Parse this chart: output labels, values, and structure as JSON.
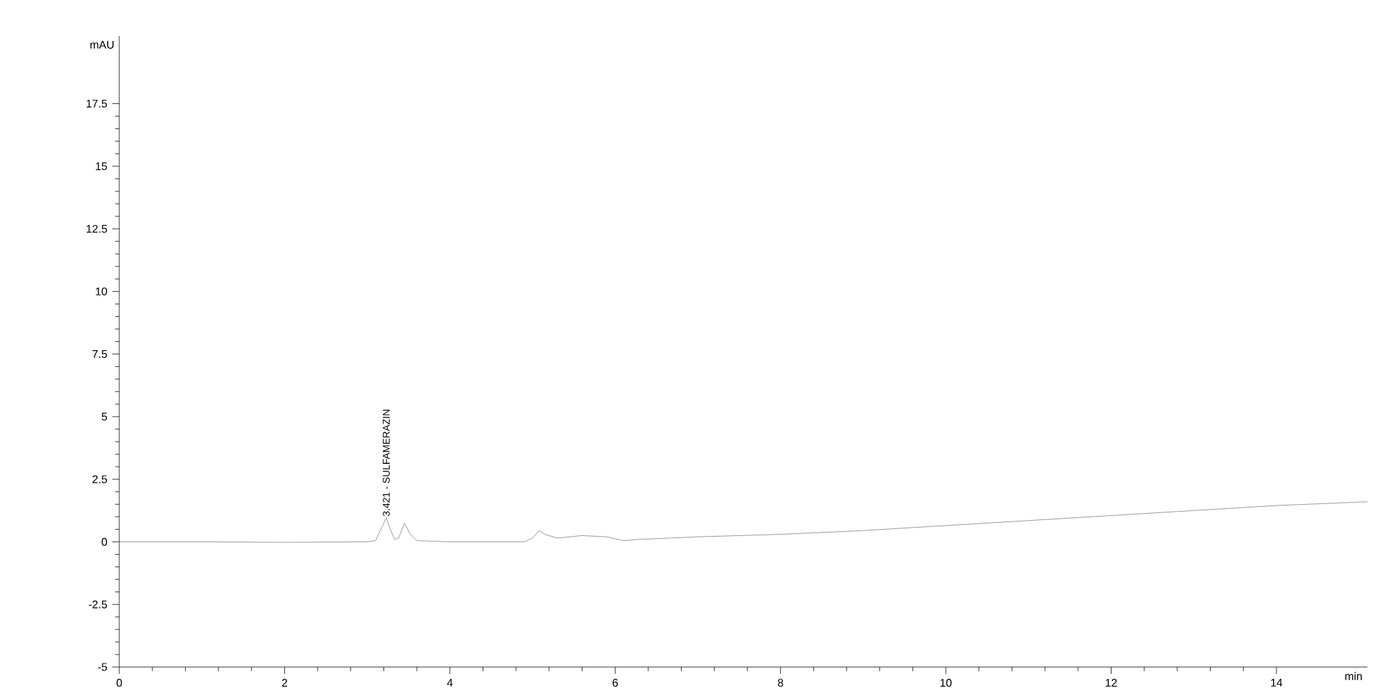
{
  "chart_data": {
    "type": "line",
    "xlabel": "min",
    "ylabel": "mAU",
    "xlim": [
      0,
      15.1
    ],
    "ylim": [
      -5,
      20.2
    ],
    "xticks": [
      0,
      2,
      4,
      6,
      8,
      10,
      12,
      14
    ],
    "yticks": [
      -5,
      -2.5,
      0,
      2.5,
      5,
      7.5,
      10,
      12.5,
      15,
      17.5
    ],
    "annotations": [
      {
        "text": "3.421 - SULFAMERAZIN",
        "x": 3.23,
        "y": 0.95
      }
    ],
    "series": [
      {
        "color": "#808080",
        "x": [
          0,
          1,
          2,
          3,
          3.1,
          3.18,
          3.23,
          3.28,
          3.33,
          3.38,
          3.45,
          3.52,
          3.6,
          4,
          4.9,
          5.0,
          5.08,
          5.15,
          5.3,
          5.6,
          5.9,
          6.1,
          6.3,
          7,
          8,
          9,
          10,
          11,
          12,
          13,
          14,
          15.1
        ],
        "values": [
          0,
          0,
          -0.02,
          0,
          0.05,
          0.6,
          0.95,
          0.5,
          0.1,
          0.15,
          0.75,
          0.3,
          0.05,
          0,
          0,
          0.15,
          0.45,
          0.3,
          0.15,
          0.25,
          0.2,
          0.05,
          0.1,
          0.2,
          0.3,
          0.45,
          0.65,
          0.85,
          1.05,
          1.25,
          1.45,
          1.6
        ]
      }
    ],
    "grid": false,
    "marker": "none",
    "line_style": "solid"
  }
}
